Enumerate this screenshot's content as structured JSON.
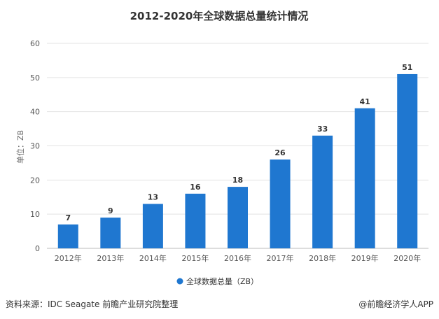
{
  "chart_data": {
    "type": "bar",
    "title": "2012-2020年全球数据总量统计情况",
    "ylabel": "单位：ZB",
    "xlabel": "",
    "categories": [
      "2012年",
      "2013年",
      "2014年",
      "2015年",
      "2016年",
      "2017年",
      "2018年",
      "2019年",
      "2020年"
    ],
    "series": [
      {
        "name": "全球数据总量（ZB）",
        "values": [
          7,
          9,
          13,
          16,
          18,
          26,
          33,
          41,
          51
        ]
      }
    ],
    "ylim": [
      0,
      60
    ],
    "yticks": [
      0,
      10,
      20,
      30,
      40,
      50,
      60
    ],
    "grid": true,
    "legend": "bottom-center"
  },
  "colors": {
    "bar": "#1f77d0",
    "grid": "#e3e3e3",
    "text": "#333333"
  },
  "footer": {
    "source": "资料来源：IDC Seagate 前瞻产业研究院整理",
    "brand": "@前瞻经济学人APP"
  }
}
